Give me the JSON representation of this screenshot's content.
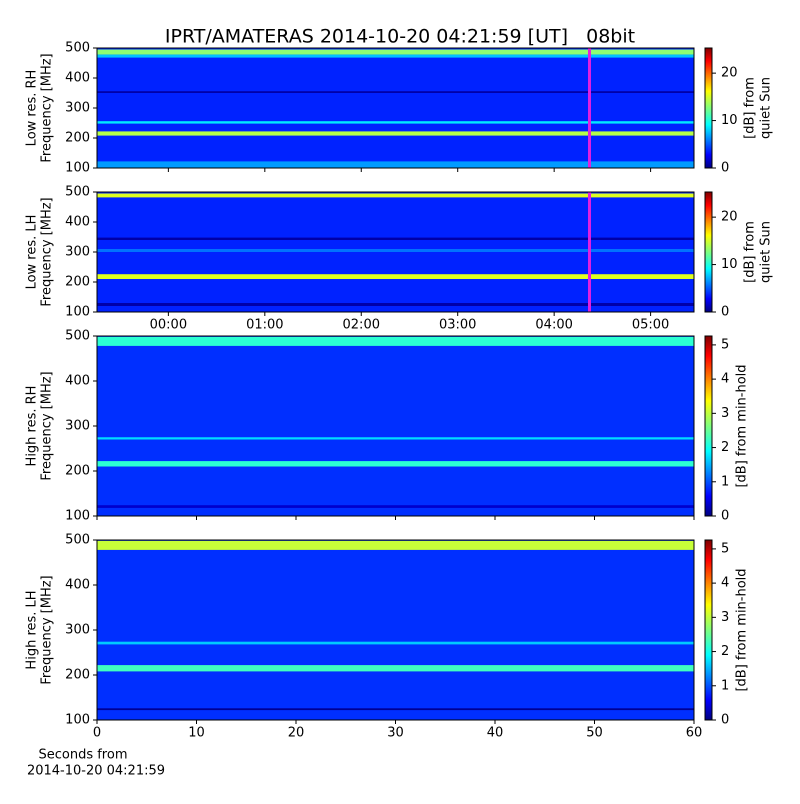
{
  "chart_data": [
    {
      "type": "spectrogram",
      "title": "IPRT/AMATERAS 2014-10-20 04:21:59 [UT]   08bit",
      "ylabel": [
        "Low res. RH",
        "Frequency [MHz]"
      ],
      "colorbar_label": [
        "[dB] from",
        "quiet Sun"
      ],
      "xlim": [
        -0.74,
        5.45
      ],
      "ylim": [
        100,
        500
      ],
      "yticks": [
        100,
        200,
        300,
        400,
        500
      ],
      "clim": [
        0,
        25.3
      ],
      "cticks": [
        0,
        10,
        20
      ],
      "background_db": 4,
      "marker_x": 4.3664,
      "marker_color": "#e020e0",
      "bands": [
        {
          "f0": 478,
          "f1": 495,
          "db": 13
        },
        {
          "f0": 468,
          "f1": 478,
          "db": 8
        },
        {
          "f0": 208,
          "f1": 222,
          "db": 14
        },
        {
          "f0": 248,
          "f1": 256,
          "db": 9
        },
        {
          "f0": 100,
          "f1": 122,
          "db": 7
        },
        {
          "f0": 350,
          "f1": 356,
          "db": 1
        }
      ]
    },
    {
      "type": "spectrogram",
      "ylabel": [
        "Low res. LH",
        "Frequency [MHz]"
      ],
      "colorbar_label": [
        "[dB] from",
        "quiet Sun"
      ],
      "xlim": [
        -0.74,
        5.45
      ],
      "ylim": [
        100,
        500
      ],
      "yticks": [
        100,
        200,
        300,
        400,
        500
      ],
      "xticks": [
        {
          "value": 0,
          "label": "00:00"
        },
        {
          "value": 1,
          "label": "01:00"
        },
        {
          "value": 2,
          "label": "02:00"
        },
        {
          "value": 3,
          "label": "03:00"
        },
        {
          "value": 4,
          "label": "04:00"
        },
        {
          "value": 5,
          "label": "05:00"
        }
      ],
      "clim": [
        0,
        25.3
      ],
      "cticks": [
        0,
        10,
        20
      ],
      "background_db": 4,
      "marker_x": 4.3664,
      "marker_color": "#e020e0",
      "bands": [
        {
          "f0": 482,
          "f1": 495,
          "db": 15
        },
        {
          "f0": 210,
          "f1": 226,
          "db": 15
        },
        {
          "f0": 340,
          "f1": 348,
          "db": 1
        },
        {
          "f0": 120,
          "f1": 130,
          "db": 1
        },
        {
          "f0": 300,
          "f1": 310,
          "db": 6
        }
      ]
    },
    {
      "type": "spectrogram",
      "ylabel": [
        "High res. RH",
        "Frequency [MHz]"
      ],
      "colorbar_label": [
        "[dB] from min-hold"
      ],
      "xlim": [
        0,
        60
      ],
      "ylim": [
        100,
        500
      ],
      "yticks": [
        100,
        200,
        300,
        400,
        500
      ],
      "clim": [
        0,
        5.26
      ],
      "cticks": [
        0,
        1,
        2,
        3,
        4,
        5
      ],
      "background_db": 0.9,
      "bands": [
        {
          "f0": 478,
          "f1": 498,
          "db": 2.2
        },
        {
          "f0": 210,
          "f1": 222,
          "db": 2.2
        },
        {
          "f0": 270,
          "f1": 275,
          "db": 1.8
        },
        {
          "f0": 118,
          "f1": 124,
          "db": 0.4
        }
      ]
    },
    {
      "type": "spectrogram",
      "ylabel": [
        "High res. LH",
        "Frequency [MHz]"
      ],
      "colorbar_label": [
        "[dB] from min-hold"
      ],
      "xlabel": [
        "Seconds from",
        "2014-10-20 04:21:59"
      ],
      "xlim": [
        0,
        60
      ],
      "ylim": [
        100,
        500
      ],
      "yticks": [
        100,
        200,
        300,
        400,
        500
      ],
      "xticks": [
        0,
        10,
        20,
        30,
        40,
        50,
        60
      ],
      "clim": [
        0,
        5.26
      ],
      "cticks": [
        0,
        1,
        2,
        3,
        4,
        5
      ],
      "background_db": 0.9,
      "bands": [
        {
          "f0": 478,
          "f1": 498,
          "db": 3
        },
        {
          "f0": 208,
          "f1": 222,
          "db": 2.3
        },
        {
          "f0": 268,
          "f1": 274,
          "db": 1.7
        },
        {
          "f0": 122,
          "f1": 126,
          "db": 0.1
        }
      ]
    }
  ]
}
